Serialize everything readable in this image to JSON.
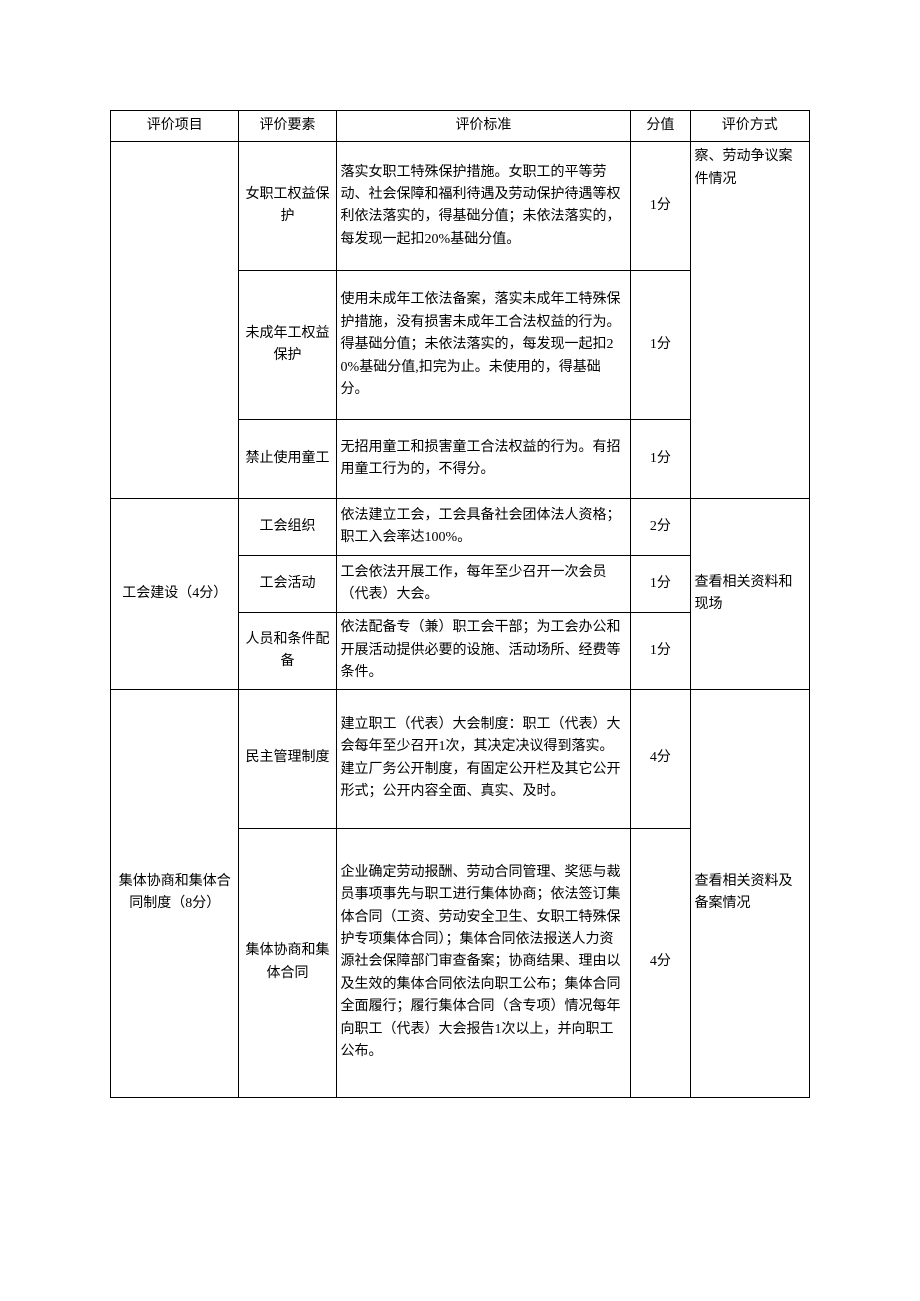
{
  "header": {
    "c1": "评价项目",
    "c2": "评价要素",
    "c3": "评价标准",
    "c4": "分值",
    "c5": "评价方式"
  },
  "section1": {
    "method_fragment": "察、劳动争议案件情况",
    "rows": {
      "female": {
        "element": "女职工权益保护",
        "std": "落实女职工特殊保护措施。女职工的平等劳动、社会保障和福利待遇及劳动保护待遇等权利依法落实的，得基础分值；未依法落实的，每发现一起扣20%基础分值。",
        "score": "1分"
      },
      "minor": {
        "element": "未成年工权益保护",
        "std": "使用未成年工依法备案，落实未成年工特殊保护措施，没有损害未成年工合法权益的行为。得基础分值；未依法落实的，每发现一起扣20%基础分值,扣完为止。未使用的，得基础分。",
        "score": "1分"
      },
      "child": {
        "element": "禁止使用童工",
        "std": "无招用童工和损害童工合法权益的行为。有招用童工行为的，不得分。",
        "score": "1分"
      }
    }
  },
  "section2": {
    "project": "工会建设（4分）",
    "method": "查看相关资料和现场",
    "rows": {
      "org": {
        "element": "工会组织",
        "std": "依法建立工会，工会具备社会团体法人资格；职工入会率达100%。",
        "score": "2分"
      },
      "activity": {
        "element": "工会活动",
        "std": "工会依法开展工作，每年至少召开一次会员（代表）大会。",
        "score": "1分"
      },
      "staff": {
        "element": "人员和条件配备",
        "std": "依法配备专（兼）职工会干部；为工会办公和开展活动提供必要的设施、活动场所、经费等条件。",
        "score": "1分"
      }
    }
  },
  "section3": {
    "project": "集体协商和集体合同制度（8分）",
    "method": "查看相关资料及备案情况",
    "rows": {
      "democracy": {
        "element": "民主管理制度",
        "std": "建立职工（代表）大会制度：职工（代表）大会每年至少召开1次，其决定决议得到落实。建立厂务公开制度，有固定公开栏及其它公开形式；公开内容全面、真实、及时。",
        "score": "4分"
      },
      "collective": {
        "element": "集体协商和集体合同",
        "std": "企业确定劳动报酬、劳动合同管理、奖惩与裁员事项事先与职工进行集体协商；依法签订集体合同（工资、劳动安全卫生、女职工特殊保护专项集体合同）；集体合同依法报送人力资源社会保障部门审查备案；协商结果、理由以及生效的集体合同依法向职工公布；集体合同全面履行；履行集体合同（含专项）情况每年向职工（代表）大会报告1次以上，并向职工公布。",
        "score": "4分"
      }
    }
  }
}
